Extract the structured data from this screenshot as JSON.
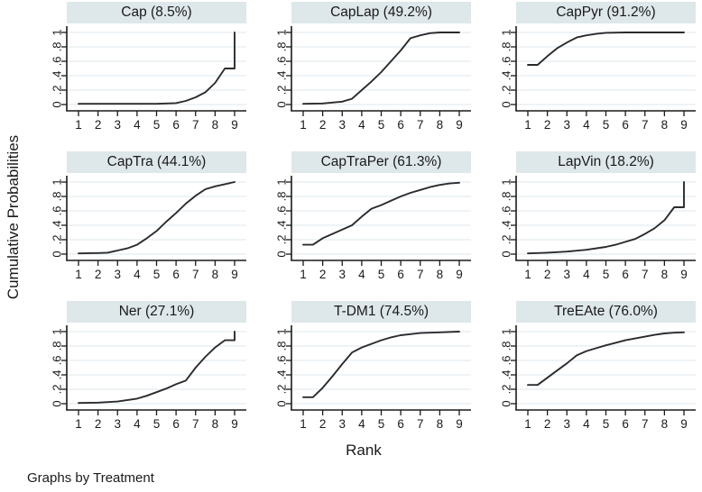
{
  "figure": {
    "ylabel": "Cumulative Probabilities",
    "xlabel": "Rank",
    "caption": "Graphs by Treatment"
  },
  "colors": {
    "title_bg": "#dee7ea",
    "line": "#2b2b2e",
    "grid": "#e9eff3",
    "axis": "#1a1a1a",
    "text": "#1a1a1a"
  },
  "axes": {
    "x_ticks": [
      "1",
      "2",
      "3",
      "4",
      "5",
      "6",
      "7",
      "8",
      "9"
    ],
    "y_ticks": [
      "0",
      ".2",
      ".4",
      ".6",
      ".8",
      "1"
    ],
    "y_tick_values": [
      0,
      0.2,
      0.4,
      0.6,
      0.8,
      1
    ],
    "xlim": [
      1,
      9
    ],
    "ylim": [
      0,
      1
    ],
    "grid": "horizontal",
    "xlabel": "Rank",
    "ylabel": "Cumulative Probabilities"
  },
  "chart_data": [
    {
      "type": "line",
      "title": "Cap (8.5%)",
      "treatment": "Cap",
      "rank1_pct": 8.5,
      "points": [
        [
          1,
          0.01
        ],
        [
          2,
          0.01
        ],
        [
          3,
          0.01
        ],
        [
          4,
          0.01
        ],
        [
          5,
          0.01
        ],
        [
          6,
          0.02
        ],
        [
          6.5,
          0.05
        ],
        [
          7,
          0.1
        ],
        [
          7.5,
          0.17
        ],
        [
          8,
          0.3
        ],
        [
          8.5,
          0.5
        ],
        [
          9,
          0.5
        ],
        [
          9,
          1
        ]
      ]
    },
    {
      "type": "line",
      "title": "CapLap (49.2%)",
      "treatment": "CapLap",
      "rank1_pct": 49.2,
      "points": [
        [
          1,
          0.01
        ],
        [
          2,
          0.015
        ],
        [
          3,
          0.04
        ],
        [
          3.5,
          0.08
        ],
        [
          4,
          0.2
        ],
        [
          4.5,
          0.32
        ],
        [
          5,
          0.45
        ],
        [
          5.5,
          0.6
        ],
        [
          6,
          0.75
        ],
        [
          6.5,
          0.92
        ],
        [
          7,
          0.96
        ],
        [
          7.5,
          0.99
        ],
        [
          8,
          1
        ],
        [
          9,
          1
        ]
      ]
    },
    {
      "type": "line",
      "title": "CapPyr (91.2%)",
      "treatment": "CapPyr",
      "rank1_pct": 91.2,
      "points": [
        [
          1,
          0.55
        ],
        [
          1.5,
          0.55
        ],
        [
          2,
          0.67
        ],
        [
          2.5,
          0.78
        ],
        [
          3,
          0.86
        ],
        [
          3.5,
          0.93
        ],
        [
          4,
          0.96
        ],
        [
          4.5,
          0.98
        ],
        [
          5,
          0.995
        ],
        [
          6,
          1
        ],
        [
          7,
          1
        ],
        [
          8,
          1
        ],
        [
          9,
          1
        ]
      ]
    },
    {
      "type": "line",
      "title": "CapTra (44.1%)",
      "treatment": "CapTra",
      "rank1_pct": 44.1,
      "points": [
        [
          1,
          0.01
        ],
        [
          2,
          0.015
        ],
        [
          2.5,
          0.02
        ],
        [
          3,
          0.05
        ],
        [
          3.5,
          0.08
        ],
        [
          4,
          0.13
        ],
        [
          4.5,
          0.22
        ],
        [
          5,
          0.32
        ],
        [
          5.5,
          0.45
        ],
        [
          6,
          0.57
        ],
        [
          6.5,
          0.7
        ],
        [
          7,
          0.81
        ],
        [
          7.5,
          0.9
        ],
        [
          8,
          0.94
        ],
        [
          8.5,
          0.97
        ],
        [
          9,
          1
        ]
      ]
    },
    {
      "type": "line",
      "title": "CapTraPer (61.3%)",
      "treatment": "CapTraPer",
      "rank1_pct": 61.3,
      "points": [
        [
          1,
          0.13
        ],
        [
          1.5,
          0.13
        ],
        [
          2,
          0.22
        ],
        [
          2.5,
          0.28
        ],
        [
          3,
          0.34
        ],
        [
          3.5,
          0.4
        ],
        [
          4,
          0.52
        ],
        [
          4.5,
          0.63
        ],
        [
          5,
          0.68
        ],
        [
          5.5,
          0.74
        ],
        [
          6,
          0.8
        ],
        [
          6.5,
          0.85
        ],
        [
          7,
          0.89
        ],
        [
          7.5,
          0.93
        ],
        [
          8,
          0.96
        ],
        [
          8.5,
          0.98
        ],
        [
          9,
          0.99
        ]
      ]
    },
    {
      "type": "line",
      "title": "LapVin (18.2%)",
      "treatment": "LapVin",
      "rank1_pct": 18.2,
      "points": [
        [
          1,
          0.01
        ],
        [
          2,
          0.02
        ],
        [
          3,
          0.035
        ],
        [
          4,
          0.06
        ],
        [
          5,
          0.1
        ],
        [
          5.5,
          0.13
        ],
        [
          6,
          0.17
        ],
        [
          6.5,
          0.21
        ],
        [
          7,
          0.28
        ],
        [
          7.5,
          0.36
        ],
        [
          8,
          0.47
        ],
        [
          8.5,
          0.65
        ],
        [
          9,
          0.65
        ],
        [
          9,
          1
        ]
      ]
    },
    {
      "type": "line",
      "title": "Ner (27.1%)",
      "treatment": "Ner",
      "rank1_pct": 27.1,
      "points": [
        [
          1,
          0.01
        ],
        [
          2,
          0.015
        ],
        [
          3,
          0.03
        ],
        [
          4,
          0.07
        ],
        [
          4.5,
          0.11
        ],
        [
          5,
          0.16
        ],
        [
          5.5,
          0.21
        ],
        [
          6,
          0.27
        ],
        [
          6.5,
          0.32
        ],
        [
          7,
          0.5
        ],
        [
          7.5,
          0.65
        ],
        [
          8,
          0.78
        ],
        [
          8.5,
          0.88
        ],
        [
          9,
          0.88
        ],
        [
          9,
          1
        ]
      ]
    },
    {
      "type": "line",
      "title": "T-DM1 (74.5%)",
      "treatment": "T-DM1",
      "rank1_pct": 74.5,
      "points": [
        [
          1,
          0.09
        ],
        [
          1.5,
          0.09
        ],
        [
          2,
          0.22
        ],
        [
          2.5,
          0.38
        ],
        [
          3,
          0.55
        ],
        [
          3.5,
          0.71
        ],
        [
          4,
          0.78
        ],
        [
          4.5,
          0.83
        ],
        [
          5,
          0.88
        ],
        [
          5.5,
          0.92
        ],
        [
          6,
          0.95
        ],
        [
          6.5,
          0.965
        ],
        [
          7,
          0.98
        ],
        [
          8,
          0.99
        ],
        [
          9,
          1
        ]
      ]
    },
    {
      "type": "line",
      "title": "TreEAte (76.0%)",
      "treatment": "TreEAte",
      "rank1_pct": 76.0,
      "points": [
        [
          1,
          0.26
        ],
        [
          1.5,
          0.26
        ],
        [
          2,
          0.36
        ],
        [
          2.5,
          0.46
        ],
        [
          3,
          0.56
        ],
        [
          3.5,
          0.67
        ],
        [
          4,
          0.73
        ],
        [
          4.5,
          0.77
        ],
        [
          5,
          0.81
        ],
        [
          5.5,
          0.845
        ],
        [
          6,
          0.88
        ],
        [
          6.5,
          0.905
        ],
        [
          7,
          0.93
        ],
        [
          7.5,
          0.955
        ],
        [
          8,
          0.975
        ],
        [
          8.5,
          0.985
        ],
        [
          9,
          0.99
        ]
      ]
    }
  ]
}
